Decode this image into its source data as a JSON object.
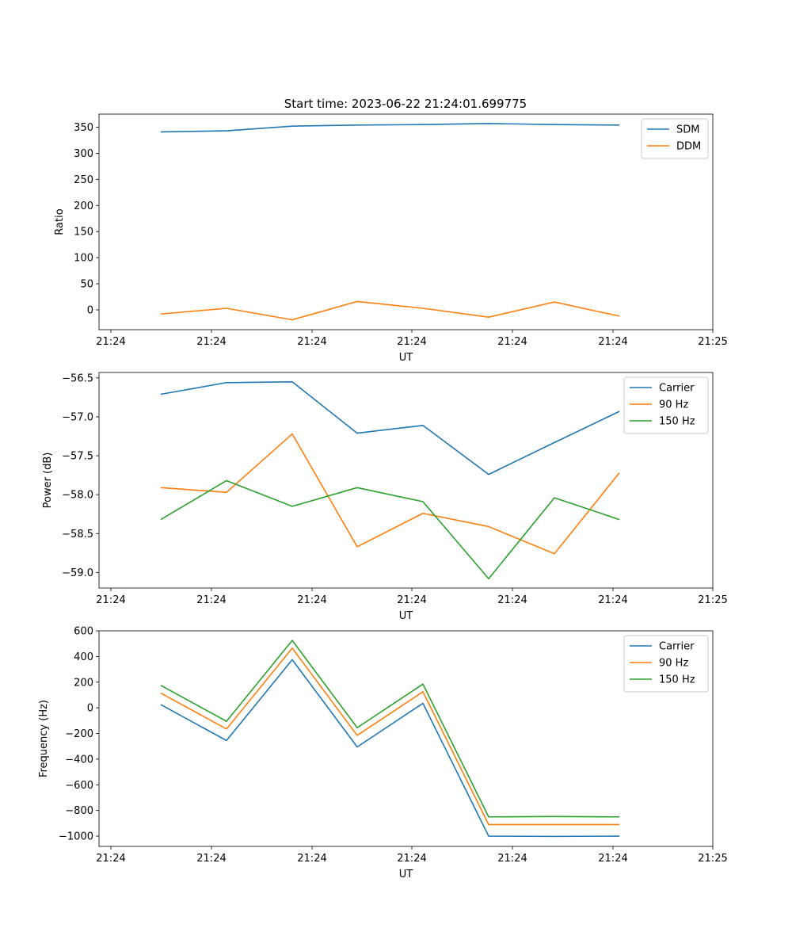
{
  "figure": {
    "title": "Start time: 2023-06-22 21:24:01.699775"
  },
  "colors": {
    "blue": "#1f77b4",
    "orange": "#ff7f0e",
    "green": "#2ca02c"
  },
  "chart_data": [
    {
      "type": "line",
      "title": "Start time: 2023-06-22 21:24:01.699775",
      "xlabel": "UT",
      "ylabel": "Ratio",
      "x_tick_labels": [
        "21:24",
        "21:24",
        "21:24",
        "21:24",
        "21:24",
        "21:24",
        "21:25"
      ],
      "yticks": [
        0,
        50,
        100,
        150,
        200,
        250,
        300,
        350
      ],
      "ylim": [
        -38,
        375
      ],
      "grid": false,
      "legend": "top-right",
      "series": [
        {
          "name": "SDM",
          "color": "blue",
          "values": [
            341,
            343,
            352,
            354,
            355,
            357,
            355,
            354
          ]
        },
        {
          "name": "DDM",
          "color": "orange",
          "values": [
            -8,
            3,
            -19,
            16,
            3,
            -14,
            15,
            -12
          ]
        }
      ]
    },
    {
      "type": "line",
      "title": "",
      "xlabel": "UT",
      "ylabel": "Power (dB)",
      "x_tick_labels": [
        "21:24",
        "21:24",
        "21:24",
        "21:24",
        "21:24",
        "21:24",
        "21:25"
      ],
      "yticks": [
        -59.0,
        -58.5,
        -58.0,
        -57.5,
        -57.0,
        -56.5
      ],
      "ytick_labels": [
        "−59.0",
        "−58.5",
        "−58.0",
        "−57.5",
        "−57.0",
        "−56.5"
      ],
      "ylim": [
        -59.2,
        -56.43
      ],
      "grid": false,
      "legend": "top-right",
      "series": [
        {
          "name": "Carrier",
          "color": "blue",
          "values": [
            -56.71,
            -56.56,
            -56.55,
            -57.21,
            -57.11,
            -57.74,
            -57.33,
            -56.93
          ]
        },
        {
          "name": "90 Hz",
          "color": "orange",
          "values": [
            -57.91,
            -57.97,
            -57.22,
            -58.67,
            -58.24,
            -58.41,
            -58.76,
            -57.72
          ]
        },
        {
          "name": "150 Hz",
          "color": "green",
          "values": [
            -58.32,
            -57.82,
            -58.15,
            -57.91,
            -58.09,
            -59.08,
            -58.04,
            -58.32
          ]
        }
      ]
    },
    {
      "type": "line",
      "title": "",
      "xlabel": "UT",
      "ylabel": "Frequency (Hz)",
      "x_tick_labels": [
        "21:24",
        "21:24",
        "21:24",
        "21:24",
        "21:24",
        "21:24",
        "21:25"
      ],
      "yticks": [
        -1000,
        -800,
        -600,
        -400,
        -200,
        0,
        200,
        400,
        600
      ],
      "ytick_labels": [
        "−1000",
        "−800",
        "−600",
        "−400",
        "−200",
        "0",
        "200",
        "400",
        "600"
      ],
      "ylim": [
        -1080,
        600
      ],
      "grid": false,
      "legend": "top-right",
      "series": [
        {
          "name": "Carrier",
          "color": "blue",
          "values": [
            25,
            -255,
            375,
            -305,
            35,
            -1000,
            -1002,
            -1000
          ]
        },
        {
          "name": "90 Hz",
          "color": "orange",
          "values": [
            115,
            -165,
            465,
            -215,
            125,
            -910,
            -910,
            -910
          ]
        },
        {
          "name": "150 Hz",
          "color": "green",
          "values": [
            175,
            -105,
            525,
            -155,
            185,
            -850,
            -847,
            -850
          ]
        }
      ]
    }
  ]
}
